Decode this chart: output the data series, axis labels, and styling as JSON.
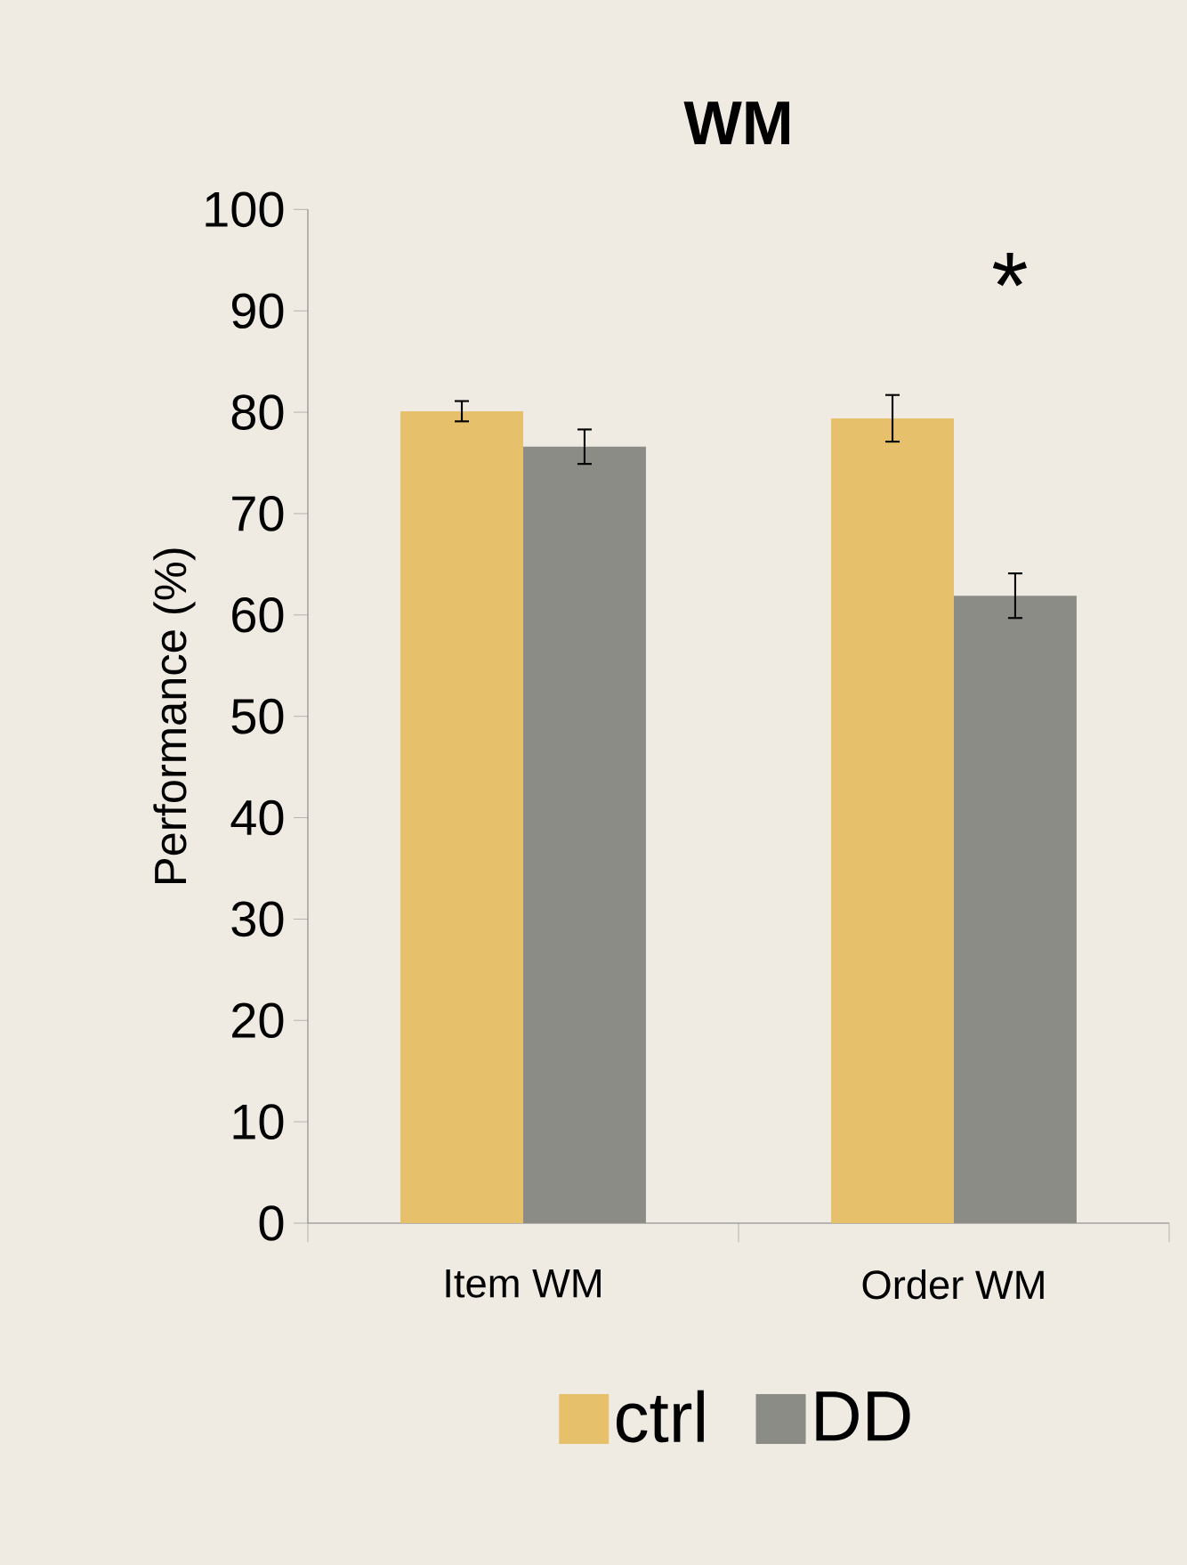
{
  "chart_data": {
    "type": "bar",
    "title": "WM",
    "ylabel": "Performance (%)",
    "categories": [
      "Item WM",
      "Order WM"
    ],
    "series": [
      {
        "name": "ctrl",
        "color": "#e6c06b",
        "values": [
          80.1,
          79.4
        ],
        "errors": [
          1.0,
          2.3
        ]
      },
      {
        "name": "DD",
        "color": "#8c8c86",
        "values": [
          76.6,
          61.9
        ],
        "errors": [
          1.7,
          2.2
        ]
      }
    ],
    "ylim": [
      0,
      100
    ],
    "yticks": [
      0,
      10,
      20,
      30,
      40,
      50,
      60,
      70,
      80,
      90,
      100
    ],
    "grid": false,
    "legend": "bottom",
    "annotations": [
      "*"
    ]
  }
}
